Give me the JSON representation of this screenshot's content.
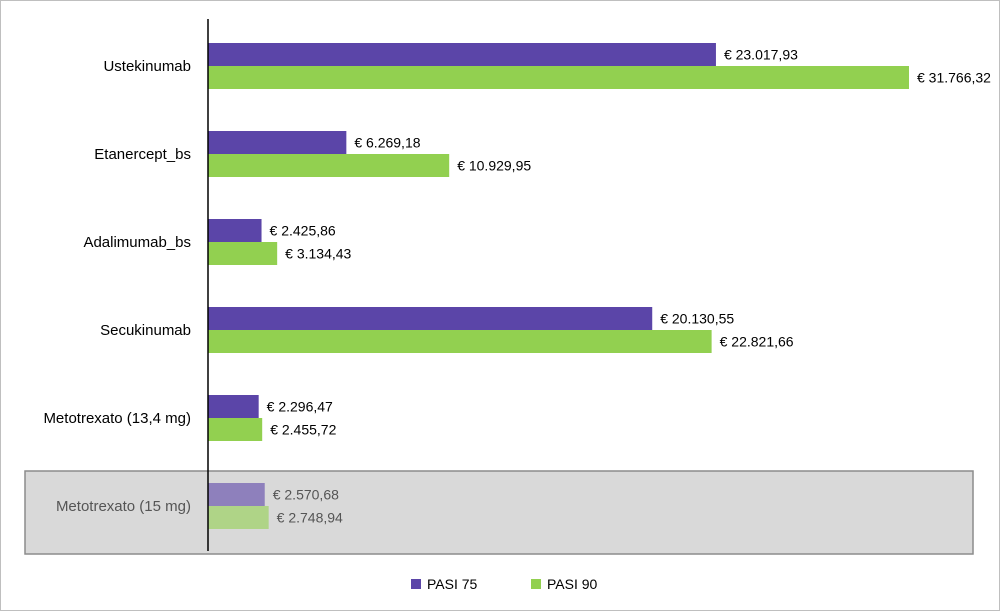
{
  "chart_data": {
    "type": "bar",
    "orientation": "horizontal",
    "title": "",
    "xlabel": "",
    "ylabel": "",
    "xlim": [
      0,
      33000
    ],
    "grid": false,
    "legend_position": "bottom",
    "categories": [
      "Ustekinumab",
      "Etanercept_bs",
      "Adalimumab_bs",
      "Secukinumab",
      "Metotrexato (13,4 mg)",
      "Metotrexato (15 mg)"
    ],
    "highlighted_category": "Metotrexato (15 mg)",
    "series": [
      {
        "name": "PASI 75",
        "color": "#5b45a8",
        "values": [
          23017.93,
          6269.18,
          2425.86,
          20130.55,
          2296.47,
          2570.68
        ],
        "labels": [
          "€ 23.017,93",
          "€ 6.269,18",
          "€ 2.425,86",
          "€ 20.130,55",
          "€ 2.296,47",
          "€ 2.570,68"
        ]
      },
      {
        "name": "PASI 90",
        "color": "#92d050",
        "values": [
          31766.32,
          10929.95,
          3134.43,
          22821.66,
          2455.72,
          2748.94
        ],
        "labels": [
          "€ 31.766,32",
          "€ 10.929,95",
          "€ 3.134,43",
          "€ 22.821,66",
          "€ 2.455,72",
          "€ 2.748,94"
        ]
      }
    ],
    "highlight_box_color": "#d9d9d9",
    "highlight_border_color": "#8c8c8c"
  }
}
